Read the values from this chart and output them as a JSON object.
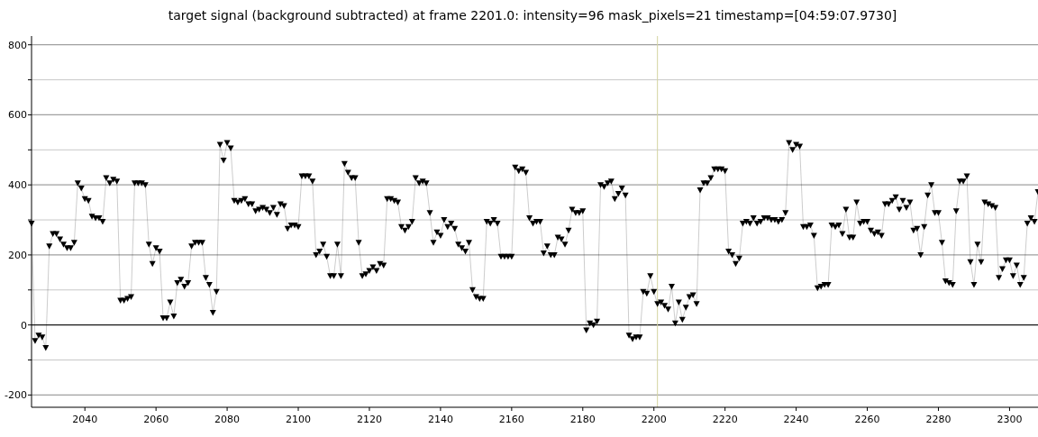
{
  "chart_data": {
    "type": "line",
    "title": "target signal (background subtracted) at frame 2201.0: intensity=96 mask_pixels=21 timestamp=[04:59:07.9730]",
    "x": [
      2025,
      2026,
      2027,
      2028,
      2029,
      2030,
      2031,
      2032,
      2033,
      2034,
      2035,
      2036,
      2037,
      2038,
      2039,
      2040,
      2041,
      2042,
      2043,
      2044,
      2045,
      2046,
      2047,
      2048,
      2049,
      2050,
      2051,
      2052,
      2053,
      2054,
      2055,
      2056,
      2057,
      2058,
      2059,
      2060,
      2061,
      2062,
      2063,
      2064,
      2065,
      2066,
      2067,
      2068,
      2069,
      2070,
      2071,
      2072,
      2073,
      2074,
      2075,
      2076,
      2077,
      2078,
      2079,
      2080,
      2081,
      2082,
      2083,
      2084,
      2085,
      2086,
      2087,
      2088,
      2089,
      2090,
      2091,
      2092,
      2093,
      2094,
      2095,
      2096,
      2097,
      2098,
      2099,
      2100,
      2101,
      2102,
      2103,
      2104,
      2105,
      2106,
      2107,
      2108,
      2109,
      2110,
      2111,
      2112,
      2113,
      2114,
      2115,
      2116,
      2117,
      2118,
      2119,
      2120,
      2121,
      2122,
      2123,
      2124,
      2125,
      2126,
      2127,
      2128,
      2129,
      2130,
      2131,
      2132,
      2133,
      2134,
      2135,
      2136,
      2137,
      2138,
      2139,
      2140,
      2141,
      2142,
      2143,
      2144,
      2145,
      2146,
      2147,
      2148,
      2149,
      2150,
      2151,
      2152,
      2153,
      2154,
      2155,
      2156,
      2157,
      2158,
      2159,
      2160,
      2161,
      2162,
      2163,
      2164,
      2165,
      2166,
      2167,
      2168,
      2169,
      2170,
      2171,
      2172,
      2173,
      2174,
      2175,
      2176,
      2177,
      2178,
      2179,
      2180,
      2181,
      2182,
      2183,
      2184,
      2185,
      2186,
      2187,
      2188,
      2189,
      2190,
      2191,
      2192,
      2193,
      2194,
      2195,
      2196,
      2197,
      2198,
      2199,
      2200,
      2201,
      2202,
      2203,
      2204,
      2205,
      2206,
      2207,
      2208,
      2209,
      2210,
      2211,
      2212,
      2213,
      2214,
      2215,
      2216,
      2217,
      2218,
      2219,
      2220,
      2221,
      2222,
      2223,
      2224,
      2225,
      2226,
      2227,
      2228,
      2229,
      2230,
      2231,
      2232,
      2233,
      2234,
      2235,
      2236,
      2237,
      2238,
      2239,
      2240,
      2241,
      2242,
      2243,
      2244,
      2245,
      2246,
      2247,
      2248,
      2249,
      2250,
      2251,
      2252,
      2253,
      2254,
      2255,
      2256,
      2257,
      2258,
      2259,
      2260,
      2261,
      2262,
      2263,
      2264,
      2265,
      2266,
      2267,
      2268,
      2269,
      2270,
      2271,
      2272,
      2273,
      2274,
      2275,
      2276,
      2277,
      2278,
      2279,
      2280,
      2281,
      2282,
      2283,
      2284,
      2285,
      2286,
      2287,
      2288,
      2289,
      2290,
      2291,
      2292,
      2293,
      2294,
      2295,
      2296,
      2297,
      2298,
      2299,
      2300,
      2301,
      2302,
      2303,
      2304,
      2305,
      2306,
      2307,
      2308
    ],
    "series": [
      {
        "color": "#000000",
        "values": [
          290,
          -45,
          -30,
          -35,
          -65,
          225,
          260,
          260,
          245,
          230,
          220,
          220,
          235,
          405,
          390,
          360,
          355,
          310,
          305,
          305,
          295,
          420,
          405,
          415,
          410,
          70,
          70,
          75,
          80,
          405,
          405,
          405,
          400,
          230,
          175,
          220,
          210,
          20,
          20,
          65,
          25,
          120,
          130,
          110,
          120,
          225,
          235,
          235,
          235,
          135,
          115,
          35,
          95,
          515,
          470,
          520,
          505,
          355,
          350,
          355,
          360,
          345,
          345,
          325,
          330,
          335,
          330,
          320,
          335,
          315,
          345,
          340,
          275,
          285,
          285,
          280,
          425,
          425,
          425,
          410,
          200,
          210,
          230,
          195,
          140,
          140,
          230,
          140,
          460,
          435,
          420,
          420,
          235,
          140,
          145,
          155,
          165,
          155,
          175,
          170,
          360,
          360,
          355,
          350,
          280,
          270,
          280,
          295,
          420,
          405,
          410,
          405,
          320,
          235,
          265,
          255,
          300,
          280,
          290,
          275,
          230,
          220,
          210,
          235,
          100,
          80,
          75,
          75,
          295,
          290,
          300,
          290,
          195,
          195,
          195,
          195,
          450,
          440,
          445,
          435,
          305,
          290,
          295,
          295,
          205,
          225,
          200,
          200,
          250,
          245,
          230,
          270,
          330,
          320,
          320,
          325,
          -15,
          5,
          0,
          10,
          400,
          395,
          405,
          410,
          360,
          375,
          390,
          370,
          -30,
          -40,
          -35,
          -35,
          95,
          90,
          140,
          95,
          60,
          65,
          55,
          45,
          110,
          5,
          65,
          15,
          50,
          80,
          85,
          60,
          385,
          405,
          405,
          420,
          445,
          445,
          445,
          440,
          210,
          200,
          175,
          190,
          290,
          295,
          290,
          305,
          290,
          295,
          305,
          305,
          300,
          300,
          295,
          300,
          320,
          520,
          500,
          515,
          510,
          280,
          280,
          285,
          255,
          105,
          110,
          115,
          115,
          285,
          280,
          285,
          260,
          330,
          250,
          250,
          350,
          290,
          295,
          295,
          270,
          260,
          265,
          255,
          345,
          345,
          355,
          365,
          330,
          355,
          335,
          350,
          270,
          275,
          200,
          280,
          370,
          400,
          320,
          320,
          235,
          125,
          120,
          115,
          325,
          410,
          410,
          425,
          180,
          115,
          230,
          180,
          350,
          345,
          340,
          335,
          135,
          160,
          185,
          185,
          140,
          170,
          115,
          135,
          290,
          305,
          295,
          380
        ]
      }
    ],
    "xlim": [
      2025,
      2308
    ],
    "xticks": [
      2040,
      2060,
      2080,
      2100,
      2120,
      2140,
      2160,
      2180,
      2200,
      2220,
      2240,
      2260,
      2280,
      2300
    ],
    "ylim": [
      -235,
      825
    ],
    "yticks": [
      -200,
      {
        "value": -100,
        "label": null
      },
      0,
      {
        "value": 100,
        "label": null
      },
      200,
      {
        "value": 300,
        "label": null
      },
      400,
      {
        "value": 500,
        "label": null
      },
      600,
      {
        "value": 700,
        "label": null
      },
      800
    ],
    "grid": "y",
    "marker": "triangle",
    "ref_lines": [
      {
        "axis": "y",
        "value": 0,
        "color": "#000000"
      },
      {
        "axis": "x",
        "value": 2201,
        "color": "#d4d4a0"
      }
    ]
  }
}
